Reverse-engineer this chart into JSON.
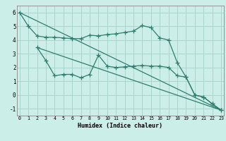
{
  "xlabel": "Humidex (Indice chaleur)",
  "background_color": "#cceee8",
  "grid_color": "#aad4ce",
  "line_color": "#2e7d6e",
  "series1_x": [
    0,
    1,
    2,
    3,
    4,
    5,
    6,
    7,
    8,
    9,
    10,
    11,
    12,
    13,
    14,
    15,
    16,
    17,
    18,
    19,
    20,
    21,
    22,
    23
  ],
  "series1_y": [
    6,
    5,
    4.3,
    4.2,
    4.2,
    4.15,
    4.1,
    4.1,
    4.35,
    4.3,
    4.4,
    4.45,
    4.55,
    4.65,
    5.05,
    4.9,
    4.15,
    4.0,
    2.35,
    1.3,
    0.0,
    -0.15,
    -0.65,
    -1.1
  ],
  "series2_x": [
    2,
    3,
    4,
    5,
    6,
    7,
    8,
    9,
    10,
    11,
    12,
    13,
    14,
    15,
    16,
    17,
    18,
    19,
    20,
    21,
    22,
    23
  ],
  "series2_y": [
    3.45,
    2.5,
    1.4,
    1.5,
    1.5,
    1.25,
    1.5,
    2.9,
    2.1,
    2.0,
    2.05,
    2.1,
    2.15,
    2.1,
    2.1,
    2.0,
    1.4,
    1.3,
    0.0,
    -0.15,
    -0.65,
    -1.1
  ],
  "series3_x": [
    2,
    23
  ],
  "series3_y": [
    3.45,
    -1.1
  ],
  "series4_x": [
    0,
    23
  ],
  "series4_y": [
    6,
    -1.1
  ],
  "ylim": [
    -1.5,
    6.5
  ],
  "xlim": [
    -0.3,
    23.3
  ],
  "yticks": [
    -1,
    0,
    1,
    2,
    3,
    4,
    5,
    6
  ],
  "xticks": [
    0,
    1,
    2,
    3,
    4,
    5,
    6,
    7,
    8,
    9,
    10,
    11,
    12,
    13,
    14,
    15,
    16,
    17,
    18,
    19,
    20,
    21,
    22,
    23
  ]
}
